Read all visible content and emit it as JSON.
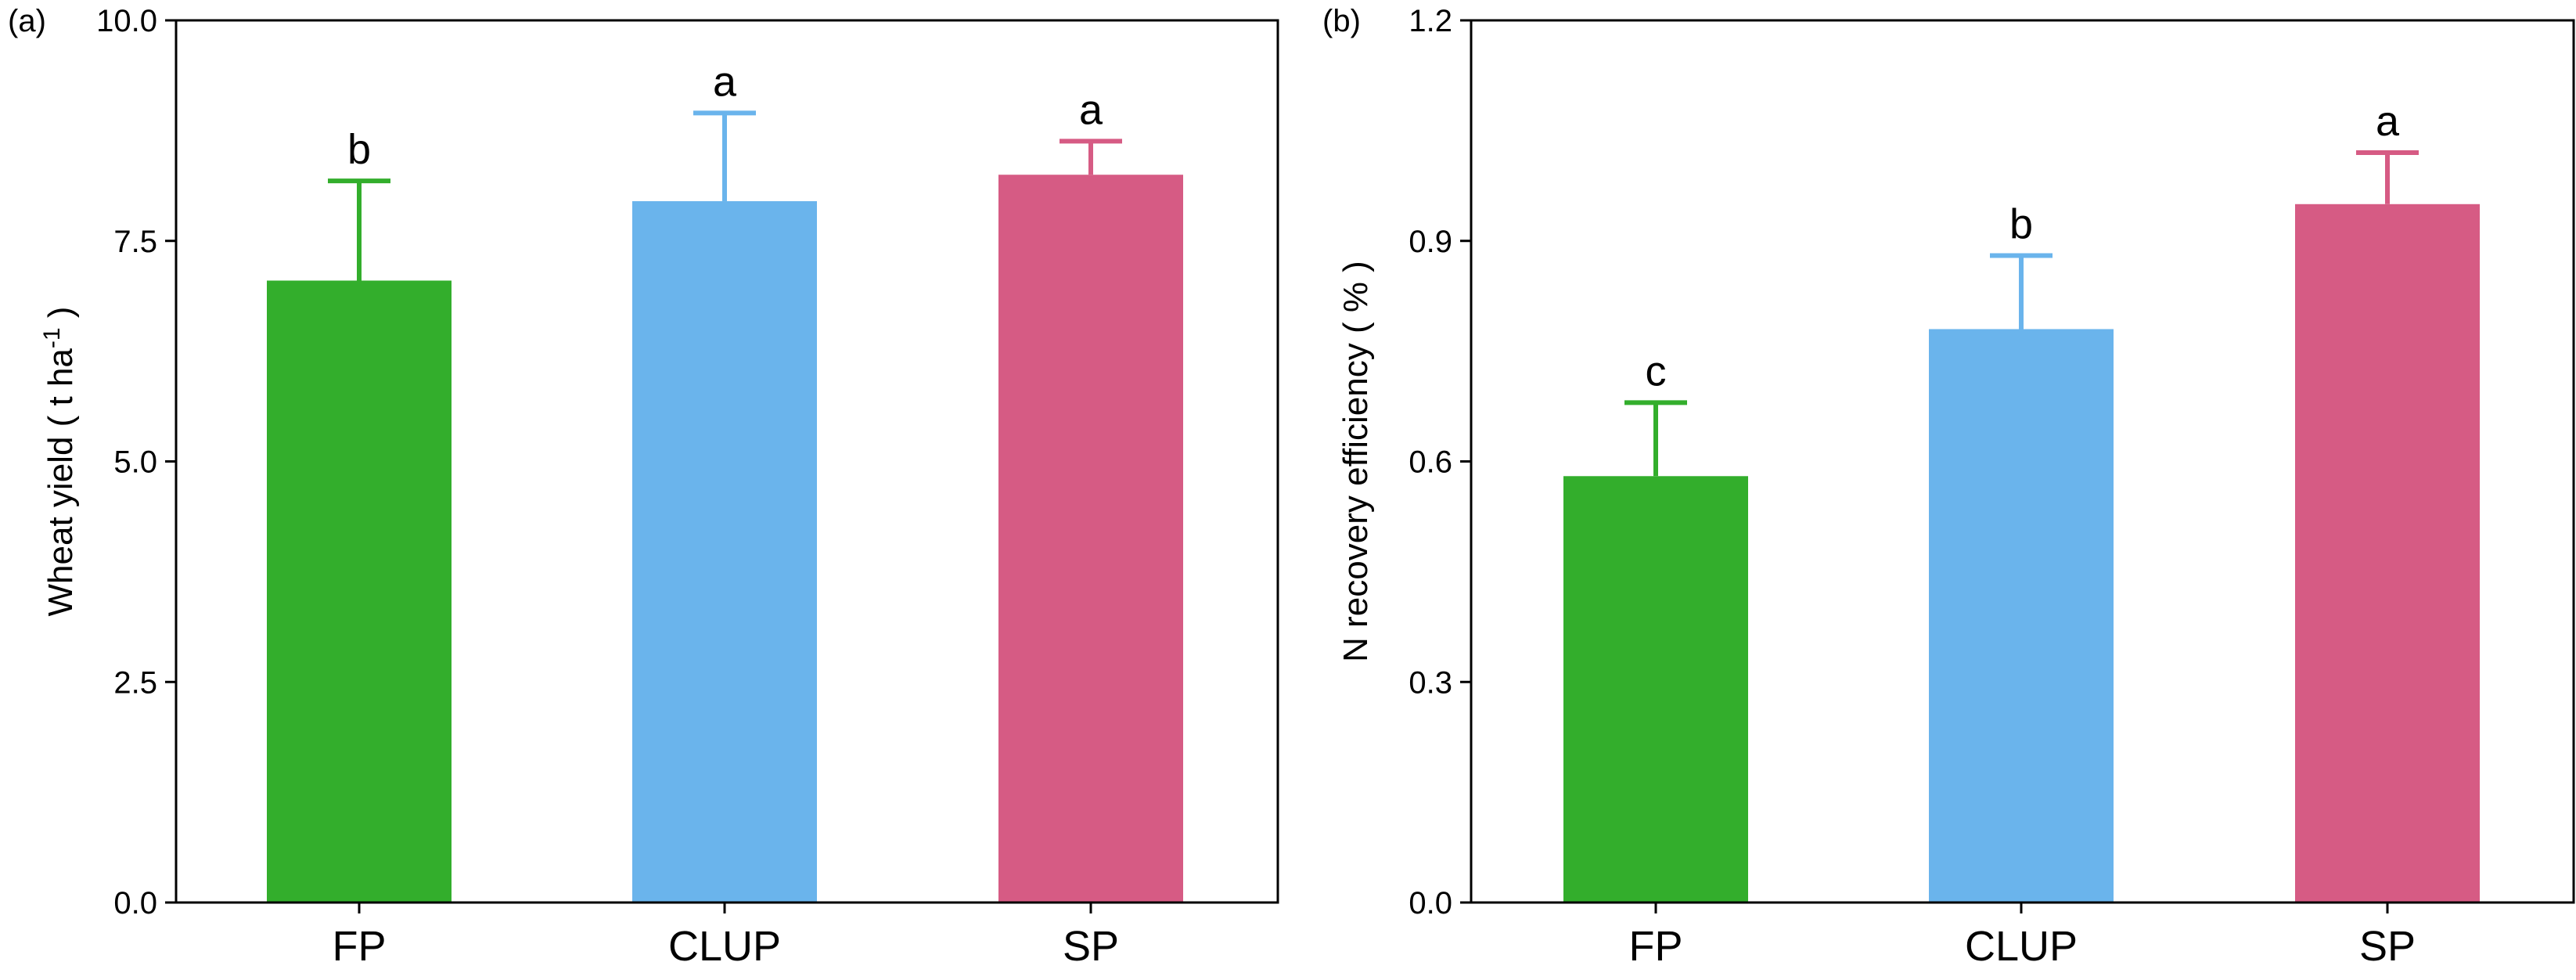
{
  "chart_data": [
    {
      "type": "bar",
      "panel_label": "(a)",
      "ylabel": "Wheat yield ( t ha",
      "ylabel_sup": "-1",
      "ylabel_end": " )",
      "xlabel": "",
      "ylim": [
        0,
        10
      ],
      "yticks": [
        0,
        2.5,
        5,
        7.5,
        10
      ],
      "ytick_labels": [
        "0.0",
        "2.5",
        "5.0",
        "7.5",
        "10.0"
      ],
      "categories": [
        "FP",
        "CLUP",
        "SP"
      ],
      "values": [
        7.05,
        7.95,
        8.25
      ],
      "errors": [
        1.13,
        1.0,
        0.38
      ],
      "significance": [
        "b",
        "a",
        "a"
      ],
      "colors": [
        "#33ae2c",
        "#6ab4ec",
        "#d65b84"
      ]
    },
    {
      "type": "bar",
      "panel_label": "(b)",
      "ylabel": "N recovery efficiency ( % )",
      "ylabel_sup": "",
      "ylabel_end": "",
      "xlabel": "",
      "ylim": [
        0,
        1.2
      ],
      "yticks": [
        0,
        0.3,
        0.6,
        0.9,
        1.2
      ],
      "ytick_labels": [
        "0.0",
        "0.3",
        "0.6",
        "0.9",
        "1.2"
      ],
      "categories": [
        "FP",
        "CLUP",
        "SP"
      ],
      "values": [
        0.58,
        0.78,
        0.95
      ],
      "errors": [
        0.1,
        0.1,
        0.07
      ],
      "significance": [
        "c",
        "b",
        "a"
      ],
      "colors": [
        "#33ae2c",
        "#6ab4ec",
        "#d65b84"
      ]
    }
  ]
}
